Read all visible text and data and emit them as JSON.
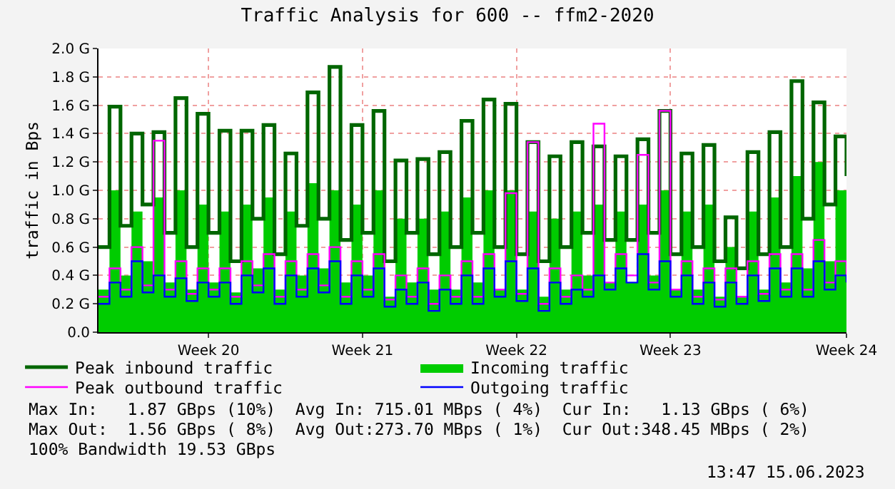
{
  "chart_data": {
    "type": "step",
    "title": "Traffic Analysis for 600 -- ffm2-2020",
    "ylabel": "traffic in Bps",
    "categories": [
      null,
      null,
      null,
      null,
      null,
      null,
      null,
      null,
      null,
      null,
      "Week 20",
      null,
      null,
      null,
      null,
      null,
      null,
      null,
      null,
      null,
      null,
      null,
      null,
      null,
      "Week 21",
      null,
      null,
      null,
      null,
      null,
      null,
      null,
      null,
      null,
      null,
      null,
      null,
      null,
      "Week 22",
      null,
      null,
      null,
      null,
      null,
      null,
      null,
      null,
      null,
      null,
      null,
      null,
      null,
      "Week 23",
      null,
      null,
      null,
      null,
      null,
      null,
      null,
      null,
      null,
      null,
      null,
      null,
      null,
      null,
      null,
      "Week 24"
    ],
    "series": [
      {
        "name": "Peak inbound traffic",
        "color": "#006600",
        "values": [
          0.6,
          1.59,
          0.75,
          1.4,
          0.9,
          1.41,
          0.7,
          1.65,
          0.6,
          1.54,
          0.7,
          1.42,
          0.5,
          1.42,
          0.8,
          1.46,
          0.55,
          1.26,
          0.75,
          1.69,
          0.8,
          1.87,
          0.65,
          1.46,
          0.7,
          1.56,
          0.5,
          1.21,
          0.7,
          1.22,
          0.55,
          1.27,
          0.6,
          1.49,
          0.7,
          1.64,
          0.6,
          1.61,
          0.55,
          1.34,
          0.5,
          1.24,
          0.6,
          1.34,
          0.7,
          1.31,
          0.65,
          1.24,
          0.65,
          1.36,
          0.7,
          1.56,
          0.55,
          1.26,
          0.6,
          1.32,
          0.5,
          0.81,
          0.45,
          1.27,
          0.55,
          1.41,
          0.6,
          1.77,
          0.8,
          1.62,
          0.9,
          1.38,
          1.1
        ]
      },
      {
        "name": "Incoming traffic",
        "type": "area",
        "color": "#00cc00",
        "values": [
          0.3,
          1.0,
          0.4,
          0.85,
          0.5,
          0.95,
          0.35,
          1.0,
          0.3,
          0.9,
          0.35,
          0.85,
          0.28,
          0.9,
          0.45,
          0.95,
          0.3,
          0.85,
          0.4,
          1.05,
          0.45,
          1.0,
          0.35,
          0.9,
          0.4,
          1.0,
          0.25,
          0.8,
          0.35,
          0.8,
          0.3,
          0.85,
          0.3,
          0.95,
          0.35,
          1.0,
          0.3,
          1.0,
          0.3,
          0.85,
          0.25,
          0.8,
          0.3,
          0.85,
          0.4,
          0.9,
          0.35,
          0.85,
          0.35,
          0.9,
          0.4,
          1.0,
          0.3,
          0.85,
          0.3,
          0.9,
          0.25,
          0.6,
          0.25,
          0.85,
          0.3,
          0.95,
          0.35,
          1.1,
          0.45,
          1.2,
          0.5,
          1.0,
          1.13
        ]
      },
      {
        "name": "Peak outbound traffic",
        "color": "#ff00ff",
        "values": [
          0.25,
          0.45,
          0.3,
          0.6,
          0.33,
          1.35,
          0.3,
          0.5,
          0.27,
          0.45,
          0.3,
          0.45,
          0.25,
          0.5,
          0.33,
          0.55,
          0.25,
          0.5,
          0.3,
          0.55,
          0.33,
          0.6,
          0.25,
          0.5,
          0.3,
          0.55,
          0.23,
          0.4,
          0.25,
          0.45,
          0.2,
          0.4,
          0.25,
          0.5,
          0.25,
          0.55,
          0.3,
          0.98,
          0.27,
          1.34,
          0.2,
          0.45,
          0.25,
          0.4,
          0.3,
          1.47,
          0.35,
          0.55,
          0.4,
          1.25,
          0.35,
          1.56,
          0.3,
          0.5,
          0.25,
          0.45,
          0.23,
          0.45,
          0.25,
          0.5,
          0.27,
          0.55,
          0.3,
          0.55,
          0.3,
          0.65,
          0.35,
          0.5,
          0.4
        ]
      },
      {
        "name": "Outgoing traffic",
        "color": "#0000ff",
        "values": [
          0.2,
          0.35,
          0.25,
          0.5,
          0.28,
          0.4,
          0.25,
          0.38,
          0.22,
          0.35,
          0.25,
          0.35,
          0.2,
          0.4,
          0.28,
          0.45,
          0.2,
          0.4,
          0.25,
          0.45,
          0.28,
          0.5,
          0.2,
          0.4,
          0.25,
          0.45,
          0.18,
          0.3,
          0.2,
          0.35,
          0.15,
          0.3,
          0.2,
          0.4,
          0.2,
          0.45,
          0.25,
          0.5,
          0.22,
          0.45,
          0.15,
          0.35,
          0.2,
          0.3,
          0.25,
          0.4,
          0.3,
          0.45,
          0.35,
          0.55,
          0.3,
          0.5,
          0.25,
          0.4,
          0.2,
          0.35,
          0.18,
          0.35,
          0.2,
          0.4,
          0.22,
          0.45,
          0.25,
          0.45,
          0.25,
          0.5,
          0.3,
          0.4,
          0.35
        ]
      }
    ],
    "ylim": [
      0,
      2.0
    ],
    "yticks": [
      {
        "value": 0,
        "label": "0.0"
      },
      {
        "value": 0.2,
        "label": "0.2 G"
      },
      {
        "value": 0.4,
        "label": "0.4 G"
      },
      {
        "value": 0.6,
        "label": "0.6 G"
      },
      {
        "value": 0.8,
        "label": "0.8 G"
      },
      {
        "value": 1.0,
        "label": "1.0 G"
      },
      {
        "value": 1.2,
        "label": "1.2 G"
      },
      {
        "value": 1.4,
        "label": "1.4 G"
      },
      {
        "value": 1.6,
        "label": "1.6 G"
      },
      {
        "value": 1.8,
        "label": "1.8 G"
      },
      {
        "value": 2.0,
        "label": "2.0 G"
      }
    ],
    "grid": true,
    "legend": "bottom",
    "annotations": [
      "Max In:   1.87 GBps (10%)  Avg In: 715.01 MBps ( 4%)  Cur In:   1.13 GBps ( 6%)",
      "Max Out:  1.56 GBps ( 8%)  Avg Out:273.70 MBps ( 1%)  Cur Out:348.45 MBps ( 2%)",
      "100% Bandwidth 19.53 GBps",
      "13:47 15.06.2023"
    ]
  }
}
